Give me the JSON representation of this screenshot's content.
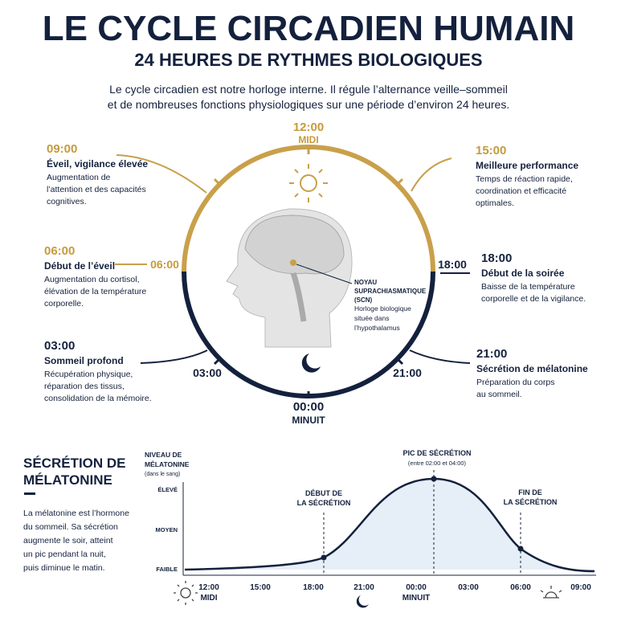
{
  "header": {
    "title": "LE CYCLE CIRCADIEN HUMAIN",
    "subtitle": "24 HEURES DE RYTHMES BIOLOGIQUES",
    "intro": [
      "Le cycle circadien est notre horloge interne. Il régule l’alternance veille–sommeil",
      "et de nombreuses fonctions physiologiques sur une période d’environ 24 heures."
    ]
  },
  "clock": {
    "noon": {
      "time": "12:00",
      "name": "MIDI"
    },
    "six": "06:00",
    "eighteen": "18:00",
    "three": "03:00",
    "twentyone": "21:00",
    "midnight": {
      "time": "00:00",
      "name": "MINUIT"
    }
  },
  "phases": [
    {
      "time": "09:00",
      "title": "Éveil, vigilance élevée",
      "lines": [
        "Augmentation de",
        "l’attention et des capacités",
        "cognitives."
      ]
    },
    {
      "time": "06:00",
      "title": "Début de l’éveil",
      "lines": [
        "Augmentation du cortisol,",
        "élévation de la température",
        "corporelle."
      ]
    },
    {
      "time": "03:00",
      "title": "Sommeil profond",
      "lines": [
        "Récupération physique,",
        "réparation des tissus,",
        "consolidation de la mémoire."
      ]
    },
    {
      "time": "15:00",
      "title": "Meilleure performance",
      "lines": [
        "Temps de réaction rapide,",
        "coordination et efficacité",
        "optimales."
      ]
    },
    {
      "time": "18:00",
      "title": "Début de la soirée",
      "lines": [
        "Baisse de la température",
        "corporelle et de la vigilance."
      ]
    },
    {
      "time": "21:00",
      "title": "Sécrétion de mélatonine",
      "lines": [
        "Préparation du corps",
        "au sommeil."
      ]
    }
  ],
  "scn": {
    "name": [
      "NOYAU",
      "SUPRACHIASMATIQUE",
      "(SCN)"
    ],
    "lines": [
      "Horloge biologique",
      "située dans",
      "l’hypothalamus"
    ]
  },
  "melatonin": {
    "title": [
      "SÉCRÉTION DE",
      "MÉLATONINE"
    ],
    "text": [
      "La mélatonine est l’hormone",
      "du sommeil. Sa sécrétion",
      "augmente le soir, atteint",
      "un pic pendant la nuit,",
      "puis diminue le matin."
    ],
    "y_axis_title": [
      "NIVEAU DE",
      "MÉLATONINE"
    ],
    "y_axis_note": "(dans le sang)",
    "levels": [
      "ÉLEVÉ",
      "MOYEN",
      "FAIBLE"
    ],
    "x_labels": [
      "12:00",
      "15:00",
      "18:00",
      "21:00",
      "00:00",
      "03:00",
      "06:00",
      "09:00"
    ],
    "noon": "MIDI",
    "midnight": "MINUIT",
    "start": [
      "DÉBUT DE",
      "LA SÉCRÉTION"
    ],
    "peak": "PIC DE SÉCRÉTION",
    "peak_note": "(entre 02:00 et 04:00)",
    "end": [
      "FIN DE",
      "LA SÉCRÉTION"
    ]
  }
}
